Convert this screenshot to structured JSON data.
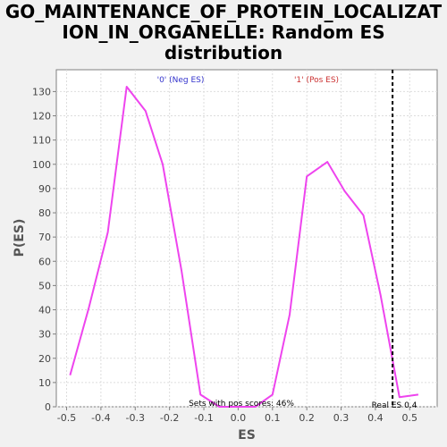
{
  "title_lines": [
    "GO_MAINTENANCE_OF_PROTEIN_LOCALIZAT",
    "ION_IN_ORGANELLE: Random ES",
    "distribution"
  ],
  "chart_data": {
    "type": "line",
    "title": "GO_MAINTENANCE_OF_PROTEIN_LOCALIZATION_IN_ORGANELLE: Random ES distribution",
    "xlabel": "ES",
    "ylabel": "P(ES)",
    "xlim": [
      -0.53,
      0.58
    ],
    "ylim": [
      0,
      139
    ],
    "x_ticks": [
      -0.5,
      -0.4,
      -0.3,
      -0.2,
      -0.1,
      0.0,
      0.1,
      0.2,
      0.3,
      0.4,
      0.5
    ],
    "x_tick_labels": [
      "-0.5",
      "-0.4",
      "-0.3",
      "-0.2",
      "-0.1",
      "0.0",
      "0.1",
      "0.2",
      "0.3",
      "0.4",
      "0.5"
    ],
    "y_ticks": [
      0,
      10,
      20,
      30,
      40,
      50,
      60,
      70,
      80,
      90,
      100,
      110,
      120,
      130
    ],
    "y_tick_labels": [
      "0",
      "10",
      "20",
      "30",
      "40",
      "50",
      "60",
      "70",
      "80",
      "90",
      "100",
      "110",
      "120",
      "130"
    ],
    "grid": true,
    "series": [
      {
        "color": "#ee44ee",
        "x": [
          -0.49,
          -0.435,
          -0.38,
          -0.325,
          -0.27,
          -0.22,
          -0.165,
          -0.11,
          -0.055,
          0.0,
          0.05,
          0.1,
          0.15,
          0.2,
          0.26,
          0.31,
          0.365,
          0.415,
          0.47,
          0.525
        ],
        "y": [
          13,
          41,
          72,
          132,
          122,
          100,
          56,
          5,
          0,
          0,
          0,
          5,
          38,
          95,
          101,
          89,
          79,
          46,
          4,
          5
        ]
      }
    ],
    "vertical_line": {
      "x": 0.45,
      "style": "dashed",
      "color": "#000000"
    },
    "annotations": {
      "neg_label": {
        "text": "'0' (Neg ES)",
        "color": "#3333cc"
      },
      "pos_label": {
        "text": "'1' (Pos ES)",
        "color": "#cc3333"
      },
      "pos_scores": "Sets with pos scores: 46%",
      "real_es": "Real ES 0.4"
    }
  }
}
